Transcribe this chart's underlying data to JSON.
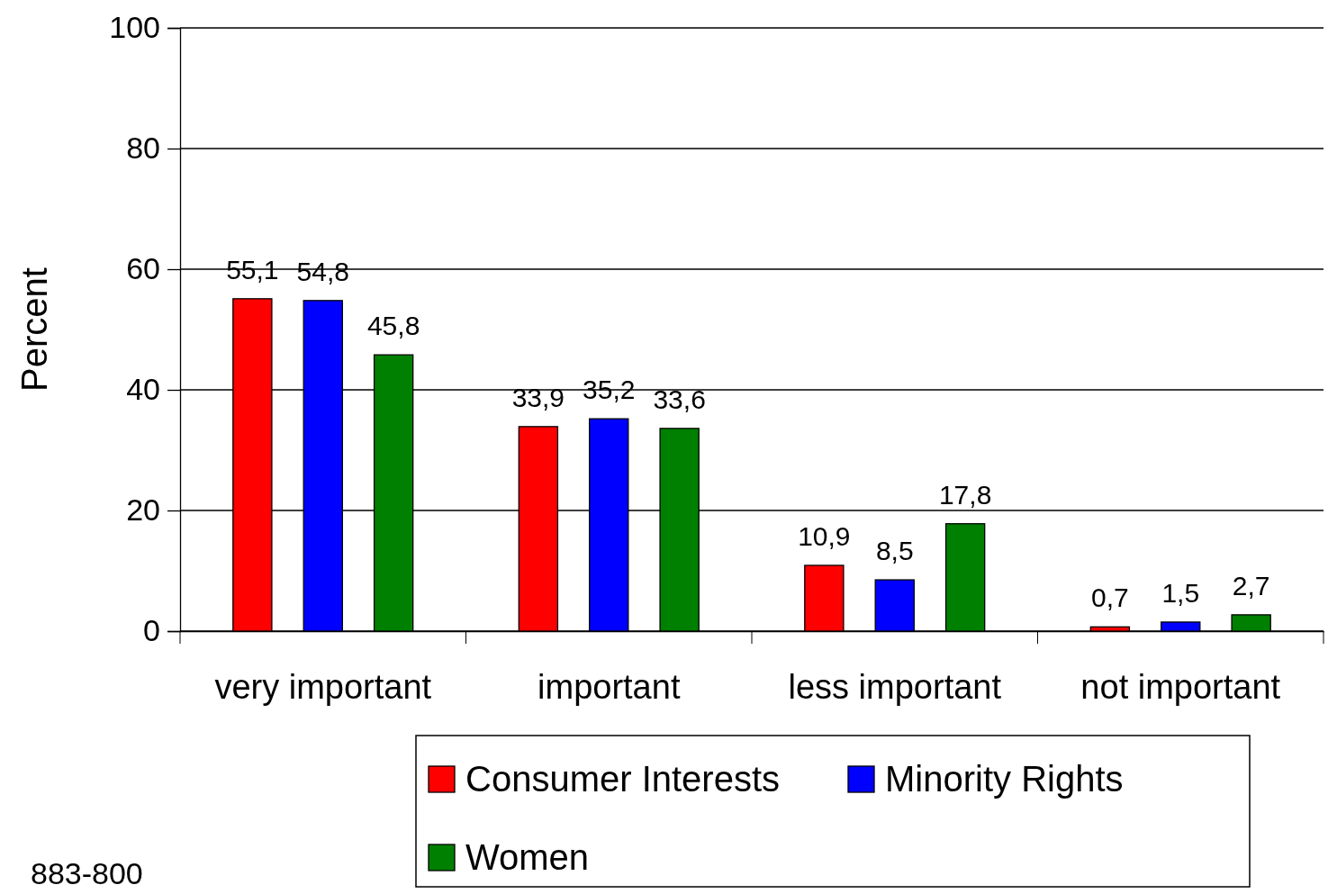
{
  "chart_data": {
    "type": "bar",
    "ylabel": "Percent",
    "categories": [
      "very important",
      "important",
      "less important",
      "not important"
    ],
    "series": [
      {
        "name": "Consumer Interests",
        "color": "#ff0000",
        "values": [
          55.1,
          33.9,
          10.9,
          0.7
        ],
        "value_labels": [
          "55,1",
          "33,9",
          "10,9",
          "0,7"
        ]
      },
      {
        "name": "Minority Rights",
        "color": "#0000ff",
        "values": [
          54.8,
          35.2,
          8.5,
          1.5
        ],
        "value_labels": [
          "54,8",
          "35,2",
          "8,5",
          "1,5"
        ]
      },
      {
        "name": "Women",
        "color": "#008000",
        "values": [
          45.8,
          33.6,
          17.8,
          2.7
        ],
        "value_labels": [
          "45,8",
          "33,6",
          "17,8",
          "2,7"
        ]
      }
    ],
    "ylim": [
      0,
      100
    ],
    "yticks": [
      0,
      20,
      40,
      60,
      80,
      100
    ],
    "grid": "y",
    "legend": "bottom",
    "annotations": [
      "883-800"
    ]
  }
}
